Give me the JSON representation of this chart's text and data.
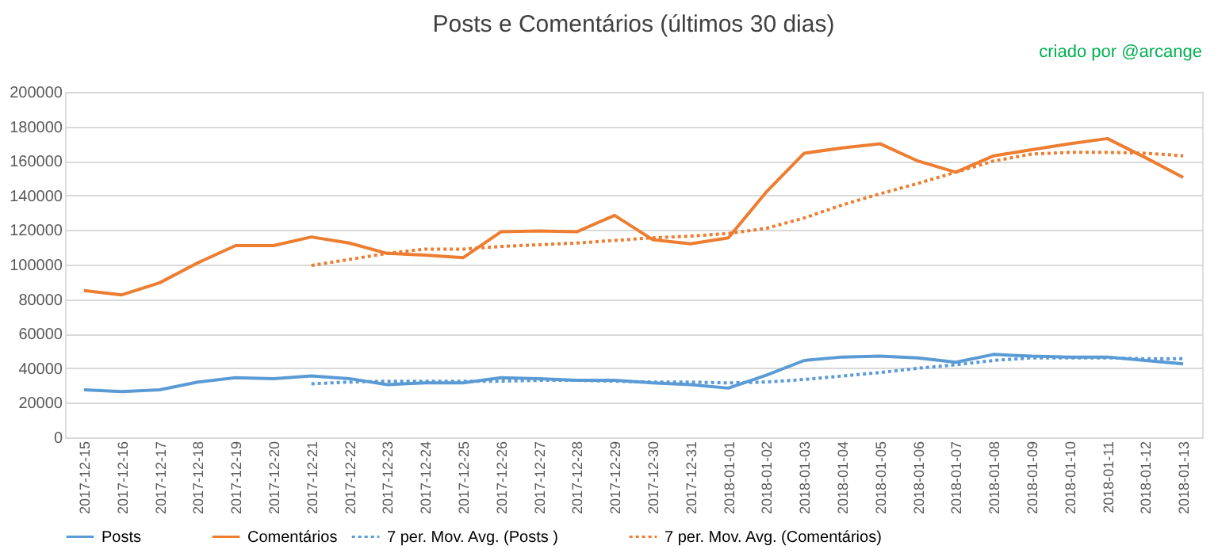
{
  "chart_data": {
    "type": "line",
    "title": "Posts e Comentários  (últimos 30 dias)",
    "annotations": [
      "criado por @arcange"
    ],
    "categories": [
      "2017-12-15",
      "2017-12-16",
      "2017-12-17",
      "2017-12-18",
      "2017-12-19",
      "2017-12-20",
      "2017-12-21",
      "2017-12-22",
      "2017-12-23",
      "2017-12-24",
      "2017-12-25",
      "2017-12-26",
      "2017-12-27",
      "2017-12-28",
      "2017-12-29",
      "2017-12-30",
      "2017-12-31",
      "2018-01-01",
      "2018-01-02",
      "2018-01-03",
      "2018-01-04",
      "2018-01-05",
      "2018-01-06",
      "2018-01-07",
      "2018-01-08",
      "2018-01-09",
      "2018-01-10",
      "2018-01-11",
      "2018-01-12",
      "2018-01-13"
    ],
    "series": [
      {
        "name": "Posts",
        "color": "#5b9bd5",
        "line_style": "solid",
        "values": [
          27500,
          26500,
          27500,
          32000,
          34500,
          34000,
          35500,
          34000,
          30500,
          31500,
          31500,
          34500,
          34000,
          33000,
          33000,
          31500,
          30500,
          28500,
          36000,
          44500,
          46500,
          47000,
          46000,
          43500,
          48000,
          47000,
          46500,
          46500,
          44500,
          42500
        ]
      },
      {
        "name": "Comentários",
        "color": "#ed7d31",
        "line_style": "solid",
        "values": [
          85000,
          82500,
          89500,
          101000,
          111000,
          111000,
          116000,
          112500,
          106500,
          105500,
          104000,
          119000,
          119500,
          119000,
          128500,
          114500,
          112000,
          115500,
          142000,
          164500,
          167500,
          170000,
          160000,
          153500,
          163000,
          166500,
          170000,
          173000,
          162000,
          150500
        ]
      },
      {
        "name": "7 per. Mov. Avg. (Posts )",
        "color": "#5b9bd5",
        "line_style": "dotted",
        "values": [
          null,
          null,
          null,
          null,
          null,
          null,
          31000,
          32000,
          32500,
          32500,
          32500,
          32500,
          33000,
          33000,
          32500,
          32000,
          32000,
          31500,
          32000,
          33500,
          35500,
          37500,
          40000,
          42000,
          44500,
          46000,
          46000,
          46000,
          45500,
          45500
        ]
      },
      {
        "name": "7 per. Mov. Avg. (Comentários)",
        "color": "#ed7d31",
        "line_style": "dotted",
        "values": [
          null,
          null,
          null,
          null,
          null,
          null,
          99500,
          103000,
          106500,
          109000,
          109000,
          110500,
          111500,
          112500,
          114000,
          115500,
          116500,
          118000,
          121000,
          127000,
          134500,
          141000,
          147000,
          153500,
          160000,
          164000,
          165000,
          165000,
          164500,
          163000
        ]
      }
    ],
    "ylim": [
      0,
      200000
    ],
    "yticks": [
      0,
      20000,
      40000,
      60000,
      80000,
      100000,
      120000,
      140000,
      160000,
      180000,
      200000
    ],
    "grid": "y",
    "legend": "bottom",
    "marker": "none"
  }
}
